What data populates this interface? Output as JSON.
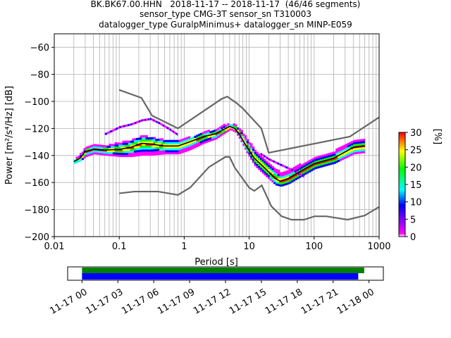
{
  "title_lines": [
    "BK.BK67.00.HHN   2018-11-17 -- 2018-11-17  (46/46 segments)",
    "sensor_type CMG-3T sensor_sn T310003",
    "datalogger_type GuralpMinimus+ datalogger_sn MINP-E059"
  ],
  "chart_data": {
    "type": "heatmap",
    "description_type": "probabilistic power spectral density",
    "xlabel": "Period [s]",
    "ylabel": "Power [m²/s⁴/Hz] [dB]",
    "x_scale": "log",
    "xlim": [
      0.01,
      1000
    ],
    "ylim": [
      -200,
      -50
    ],
    "x_ticks": [
      0.01,
      0.1,
      1,
      10,
      100,
      1000
    ],
    "x_tick_labels": [
      "0.01",
      "0.1",
      "1",
      "10",
      "100",
      "1000"
    ],
    "y_ticks": [
      -200,
      -180,
      -160,
      -140,
      -120,
      -100,
      -80,
      -60
    ],
    "y_tick_labels": [
      "−200",
      "−180",
      "−160",
      "−140",
      "−120",
      "−100",
      "−80",
      "−60"
    ],
    "grid": true,
    "colorbar": {
      "label": "[%]",
      "range": [
        0,
        30
      ],
      "ticks": [
        0,
        5,
        10,
        15,
        20,
        25,
        30
      ],
      "tick_labels": [
        "0",
        "5",
        "10",
        "15",
        "20",
        "25",
        "30"
      ],
      "colormap": "pqlx",
      "colors": [
        "#ffffff",
        "#ff00ff",
        "#0000ff",
        "#00ffff",
        "#00ff00",
        "#ffff00",
        "#ff0000"
      ]
    },
    "noise_model_color": "#666666",
    "nhnm": [
      [
        0.1,
        -91.5
      ],
      [
        0.22,
        -97.4
      ],
      [
        0.32,
        -110.5
      ],
      [
        0.8,
        -120
      ],
      [
        3.8,
        -98
      ],
      [
        4.6,
        -96.5
      ],
      [
        6.3,
        -101
      ],
      [
        7.9,
        -105
      ],
      [
        15.4,
        -120
      ],
      [
        20,
        -138
      ],
      [
        354.8,
        -126
      ],
      [
        10000,
        -80
      ]
    ],
    "nlnm": [
      [
        0.1,
        -168
      ],
      [
        0.17,
        -166.7
      ],
      [
        0.4,
        -166.7
      ],
      [
        0.8,
        -169.2
      ],
      [
        1.24,
        -163.7
      ],
      [
        2.4,
        -148.6
      ],
      [
        4.3,
        -141.1
      ],
      [
        5,
        -141.1
      ],
      [
        6,
        -149
      ],
      [
        10,
        -163.8
      ],
      [
        12,
        -166.2
      ],
      [
        15.6,
        -162.1
      ],
      [
        21.9,
        -177.5
      ],
      [
        31.6,
        -185
      ],
      [
        45,
        -187.5
      ],
      [
        70,
        -187.5
      ],
      [
        101,
        -185
      ],
      [
        154,
        -185
      ],
      [
        328,
        -187.5
      ],
      [
        600,
        -184.4
      ],
      [
        1000,
        -178
      ]
    ],
    "mode_line": [
      [
        0.02,
        -144.5
      ],
      [
        0.025,
        -142
      ],
      [
        0.03,
        -137
      ],
      [
        0.04,
        -135.5
      ],
      [
        0.06,
        -136
      ],
      [
        0.1,
        -135.5
      ],
      [
        0.15,
        -134
      ],
      [
        0.22,
        -131
      ],
      [
        0.3,
        -131.5
      ],
      [
        0.5,
        -133
      ],
      [
        0.8,
        -133
      ],
      [
        1.2,
        -130
      ],
      [
        2,
        -126
      ],
      [
        3,
        -124
      ],
      [
        4,
        -121
      ],
      [
        5,
        -118.5
      ],
      [
        6,
        -120
      ],
      [
        7,
        -124
      ],
      [
        9,
        -133
      ],
      [
        12,
        -142
      ],
      [
        18,
        -150
      ],
      [
        25,
        -157
      ],
      [
        30,
        -159
      ],
      [
        40,
        -157
      ],
      [
        60,
        -152
      ],
      [
        100,
        -146
      ],
      [
        200,
        -142
      ],
      [
        400,
        -134
      ],
      [
        600,
        -133
      ]
    ],
    "density_band": [
      {
        "period": 0.02,
        "min": -146,
        "max": -143,
        "mode": -144.5
      },
      {
        "period": 0.025,
        "min": -144,
        "max": -139,
        "mode": -142
      },
      {
        "period": 0.03,
        "min": -141,
        "max": -134,
        "mode": -137
      },
      {
        "period": 0.04,
        "min": -139,
        "max": -133,
        "mode": -135.5
      },
      {
        "period": 0.06,
        "min": -140,
        "max": -133,
        "mode": -136
      },
      {
        "period": 0.1,
        "min": -141,
        "max": -131,
        "mode": -135.5
      },
      {
        "period": 0.15,
        "min": -141,
        "max": -129,
        "mode": -134
      },
      {
        "period": 0.22,
        "min": -140,
        "max": -126,
        "mode": -131
      },
      {
        "period": 0.3,
        "min": -140,
        "max": -127,
        "mode": -131.5
      },
      {
        "period": 0.5,
        "min": -139,
        "max": -129,
        "mode": -133
      },
      {
        "period": 0.8,
        "min": -139,
        "max": -129,
        "mode": -133
      },
      {
        "period": 1.2,
        "min": -136,
        "max": -127,
        "mode": -130
      },
      {
        "period": 2,
        "min": -131,
        "max": -123,
        "mode": -126
      },
      {
        "period": 3,
        "min": -128,
        "max": -121,
        "mode": -124
      },
      {
        "period": 4,
        "min": -124,
        "max": -118,
        "mode": -121
      },
      {
        "period": 5,
        "min": -121,
        "max": -117,
        "mode": -118.5
      },
      {
        "period": 6,
        "min": -123,
        "max": -118,
        "mode": -120
      },
      {
        "period": 7,
        "min": -128,
        "max": -121,
        "mode": -124
      },
      {
        "period": 9,
        "min": -138,
        "max": -128,
        "mode": -133
      },
      {
        "period": 12,
        "min": -148,
        "max": -137,
        "mode": -142
      },
      {
        "period": 18,
        "min": -156,
        "max": -144,
        "mode": -150
      },
      {
        "period": 25,
        "min": -162,
        "max": -150,
        "mode": -157
      },
      {
        "period": 30,
        "min": -163,
        "max": -153,
        "mode": -159
      },
      {
        "period": 40,
        "min": -161,
        "max": -151,
        "mode": -157
      },
      {
        "period": 60,
        "min": -156,
        "max": -147,
        "mode": -152
      },
      {
        "period": 100,
        "min": -150,
        "max": -141,
        "mode": -146
      },
      {
        "period": 200,
        "min": -146,
        "max": -137,
        "mode": -142
      },
      {
        "period": 400,
        "min": -139,
        "max": -129,
        "mode": -134
      },
      {
        "period": 600,
        "min": -138,
        "max": -128,
        "mode": -133
      }
    ],
    "outlier_curve": [
      [
        0.06,
        -124
      ],
      [
        0.1,
        -119
      ],
      [
        0.15,
        -117
      ],
      [
        0.22,
        -114
      ],
      [
        0.3,
        -113
      ],
      [
        0.4,
        -116
      ],
      [
        0.6,
        -121
      ],
      [
        0.8,
        -125
      ]
    ],
    "outlier_curve2": [
      [
        15,
        -139
      ],
      [
        20,
        -143
      ],
      [
        30,
        -147
      ],
      [
        50,
        -152
      ],
      [
        70,
        -156
      ]
    ],
    "timeline": {
      "tick_labels": [
        "11-17 00",
        "11-17 03",
        "11-17 06",
        "11-17 09",
        "11-17 12",
        "11-17 15",
        "11-17 18",
        "11-17 21",
        "11-18 00"
      ],
      "tick_hours": [
        0,
        3,
        6,
        9,
        12,
        15,
        18,
        21,
        24
      ],
      "data_coverage_hours": [
        0,
        23.6
      ],
      "processed_coverage_hours": [
        0,
        23.1
      ],
      "data_color": "#008000",
      "processed_color": "#0000ff",
      "xlim_hours": [
        -1.2,
        25.2
      ]
    }
  }
}
